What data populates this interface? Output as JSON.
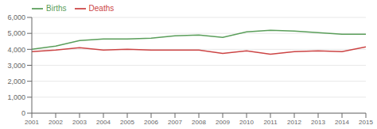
{
  "chart_data": {
    "type": "line",
    "x": [
      2001,
      2002,
      2003,
      2004,
      2005,
      2006,
      2007,
      2008,
      2009,
      2010,
      2011,
      2012,
      2013,
      2014,
      2015
    ],
    "series": [
      {
        "name": "Births",
        "color": "#5a9e5a",
        "values": [
          4000,
          4200,
          4550,
          4650,
          4650,
          4700,
          4850,
          4900,
          4750,
          5100,
          5200,
          5150,
          5050,
          4950,
          4950
        ]
      },
      {
        "name": "Deaths",
        "color": "#cc4444",
        "values": [
          3850,
          3950,
          4100,
          3950,
          4000,
          3950,
          3950,
          3950,
          3750,
          3900,
          3700,
          3850,
          3900,
          3850,
          4150
        ]
      }
    ],
    "xlim": [
      2001,
      2015
    ],
    "xticks": [
      2001,
      2002,
      2003,
      2004,
      2005,
      2006,
      2007,
      2008,
      2009,
      2010,
      2011,
      2012,
      2013,
      2014,
      2015
    ],
    "ylim": [
      0,
      6000
    ],
    "yticks": [
      0,
      {
        "value": 1000,
        "label": "1,000"
      },
      {
        "value": 2000,
        "label": "2,000"
      },
      {
        "value": 3000,
        "label": "3,000"
      },
      {
        "value": 4000,
        "label": "4,000"
      },
      {
        "value": 5000,
        "label": "5,000"
      },
      {
        "value": 6000,
        "label": "6,000"
      }
    ],
    "grid": true,
    "legend": "upper left"
  }
}
